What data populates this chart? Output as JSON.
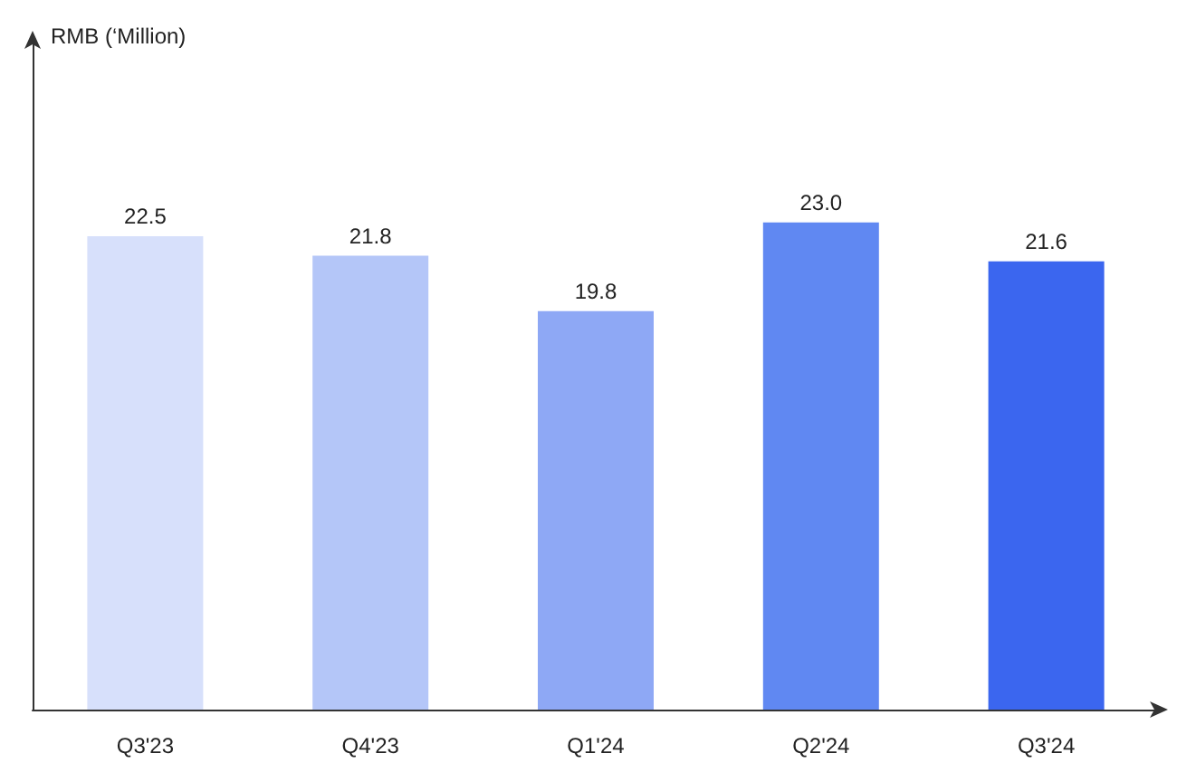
{
  "chart_data": {
    "type": "bar",
    "ylabel": "RMB (‘Million)",
    "categories": [
      "Q3'23",
      "Q4'23",
      "Q1'24",
      "Q2'24",
      "Q3'24"
    ],
    "values": [
      22.5,
      21.8,
      19.8,
      23.0,
      21.6
    ],
    "colors": [
      "#d7e0fb",
      "#b4c6f8",
      "#8ea8f5",
      "#6088f2",
      "#3b66ef"
    ],
    "value_labels": [
      "22.5",
      "21.8",
      "19.8",
      "23.0",
      "21.6"
    ],
    "ylim": [
      5.4,
      29.6
    ],
    "grid": false,
    "tick_labels": "x"
  }
}
